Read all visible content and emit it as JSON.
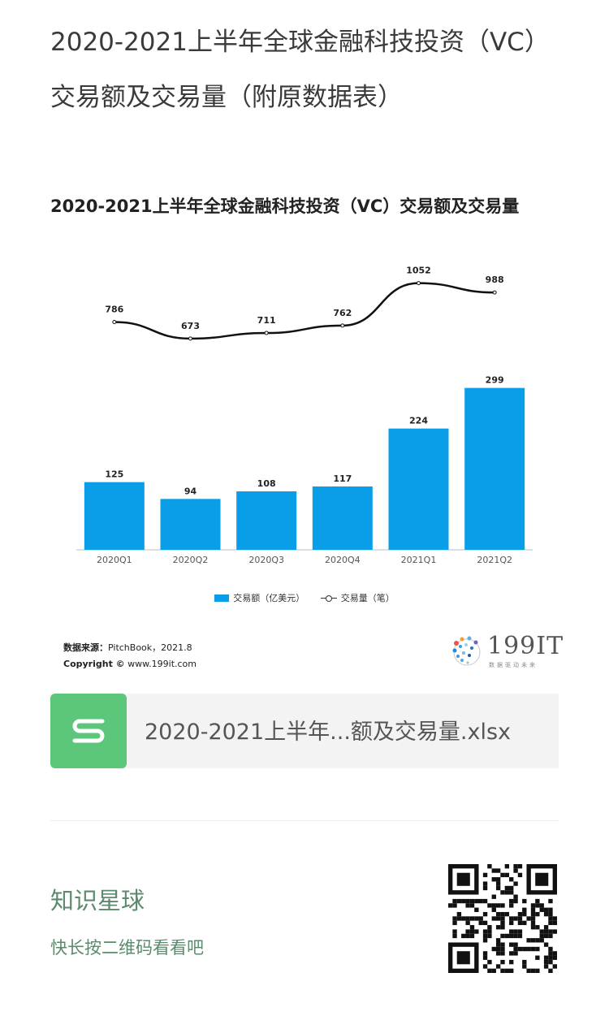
{
  "page": {
    "title": "2020-2021上半年全球金融科技投资（VC）交易额及交易量（附原数据表）"
  },
  "chart_data": {
    "type": "bar",
    "title": "2020-2021上半年全球金融科技投资（VC）交易额及交易量",
    "categories": [
      "2020Q1",
      "2020Q2",
      "2020Q3",
      "2020Q4",
      "2021Q1",
      "2021Q2"
    ],
    "series": [
      {
        "name": "交易额（亿美元）",
        "type": "bar",
        "color": "#0a9ee8",
        "values": [
          125,
          94,
          108,
          117,
          224,
          299
        ]
      },
      {
        "name": "交易量（笔）",
        "type": "line",
        "color": "#111111",
        "values": [
          786,
          673,
          711,
          762,
          1052,
          988
        ]
      }
    ],
    "legend_position": "bottom",
    "grid": false
  },
  "source": {
    "label": "数据来源：",
    "text": "PitchBook，2021.8",
    "copyright_label": "Copyright ©",
    "copyright_text": "www.199it.com"
  },
  "brand": {
    "name": "199IT",
    "tagline": "数据驱动未来"
  },
  "attachment": {
    "filename": "2020-2021上半年...额及交易量.xlsx",
    "icon": "spreadsheet-s-icon"
  },
  "promo": {
    "title": "知识星球",
    "subtitle": "快长按二维码看看吧"
  }
}
